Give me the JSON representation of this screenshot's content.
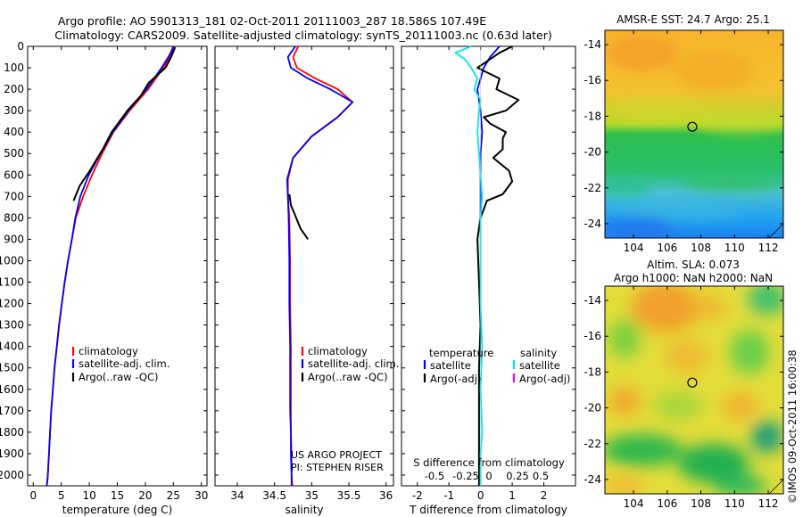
{
  "header": {
    "line1": "Argo profile: AO 5901313_181 02-Oct-2011 20111003_287 18.586S 107.49E",
    "line2": "Climatology: CARS2009. Satellite-adjusted climatology: synTS_20111003.nc (0.63d later)"
  },
  "colors": {
    "climatology": "#ff0000",
    "satellite": "#0000ff",
    "argo": "#000000",
    "salinity_satellite": "#00e5ee",
    "salinity_argo": "#ff00ff"
  },
  "chart_data": [
    {
      "type": "line",
      "panel": "temperature",
      "xlabel": "temperature (deg C)",
      "ylabel": "",
      "xlim": [
        -1,
        31
      ],
      "ylim": [
        2050,
        0
      ],
      "xticks": [
        0,
        5,
        10,
        15,
        20,
        25,
        30
      ],
      "yticks": [
        0,
        100,
        200,
        300,
        400,
        500,
        600,
        700,
        800,
        900,
        1000,
        1100,
        1200,
        1300,
        1400,
        1500,
        1600,
        1700,
        1800,
        1900,
        2000
      ],
      "legend": [
        "climatology",
        "satellite-adj. clim.",
        "Argo(..raw -QC)"
      ],
      "series": [
        {
          "name": "climatology",
          "color": "#ff0000",
          "x": [
            25.3,
            24.8,
            24.3,
            23.2,
            20.5,
            17.2,
            14.3,
            12.3,
            10.5,
            8.9,
            7.6,
            6.9,
            6.2,
            5.6,
            5.1,
            4.6,
            4.2,
            3.8,
            3.5,
            3.2,
            3.0,
            2.8,
            2.6,
            2.5,
            2.4,
            2.3
          ],
          "y": [
            0,
            25,
            50,
            100,
            200,
            300,
            400,
            500,
            600,
            700,
            800,
            900,
            1000,
            1100,
            1200,
            1300,
            1400,
            1500,
            1600,
            1700,
            1800,
            1900,
            2000,
            2030,
            2050,
            2050
          ]
        },
        {
          "name": "satellite-adj. clim.",
          "color": "#0000ff",
          "x": [
            25.0,
            24.6,
            24.1,
            22.9,
            20.2,
            17.0,
            14.2,
            12.0,
            9.9,
            8.4,
            7.5,
            6.9,
            6.2,
            5.6,
            5.1,
            4.6,
            4.2,
            3.8,
            3.5,
            3.2,
            3.0,
            2.8,
            2.6,
            2.5,
            2.4
          ],
          "y": [
            0,
            25,
            50,
            100,
            200,
            300,
            400,
            500,
            600,
            700,
            800,
            900,
            1000,
            1100,
            1200,
            1300,
            1400,
            1500,
            1600,
            1700,
            1800,
            1900,
            2000,
            2030,
            2050
          ]
        },
        {
          "name": "Argo(..raw -QC)",
          "color": "#000000",
          "x": [
            25.3,
            25.0,
            24.5,
            23.6,
            20.6,
            19.2,
            16.8,
            14.0,
            12.4,
            10.1,
            8.3,
            7.2
          ],
          "y": [
            5,
            25,
            55,
            100,
            170,
            230,
            300,
            400,
            480,
            580,
            650,
            720
          ]
        }
      ]
    },
    {
      "type": "line",
      "panel": "salinity",
      "xlabel": "salinity",
      "xlim": [
        33.7,
        36.1
      ],
      "ylim": [
        2050,
        0
      ],
      "xticks": [
        34,
        34.5,
        35,
        35.5,
        36
      ],
      "xtick_labels": [
        "34",
        "34.5",
        "35",
        "35.5",
        "36"
      ],
      "legend": [
        "climatology",
        "satellite-adj. clim.",
        "Argo(..raw -QC)"
      ],
      "annotations": [
        "US ARGO PROJECT",
        "PI: STEPHEN RISER"
      ],
      "series": [
        {
          "name": "climatology",
          "color": "#ff0000",
          "x": [
            34.82,
            34.75,
            34.8,
            35.05,
            35.35,
            35.55,
            35.35,
            35.0,
            34.75,
            34.68,
            34.68,
            34.7,
            34.71,
            34.71,
            34.72,
            34.72,
            34.72,
            34.72,
            34.73,
            34.73,
            34.74
          ],
          "y": [
            0,
            50,
            100,
            150,
            200,
            260,
            330,
            420,
            520,
            620,
            700,
            800,
            1000,
            1200,
            1400,
            1600,
            1700,
            1800,
            1900,
            2000,
            2050
          ]
        },
        {
          "name": "satellite-adj. clim.",
          "color": "#0000ff",
          "x": [
            34.78,
            34.68,
            34.72,
            34.95,
            35.25,
            35.55,
            35.35,
            35.0,
            34.75,
            34.67,
            34.68,
            34.69,
            34.7,
            34.7,
            34.71,
            34.71,
            34.71,
            34.72,
            34.72,
            34.73,
            34.73
          ],
          "y": [
            0,
            50,
            100,
            150,
            200,
            260,
            330,
            420,
            520,
            620,
            700,
            800,
            1000,
            1200,
            1400,
            1600,
            1700,
            1800,
            1900,
            2000,
            2050
          ]
        },
        {
          "name": "Argo(..raw -QC)",
          "color": "#000000",
          "x": [
            34.7,
            34.72,
            34.78,
            34.85,
            34.95
          ],
          "y": [
            690,
            740,
            790,
            850,
            900
          ]
        }
      ]
    },
    {
      "type": "line",
      "panel": "difference",
      "xlabel": "T difference from climatology",
      "xlim": [
        -2.5,
        3
      ],
      "ylim": [
        2050,
        0
      ],
      "xticks": [
        -2,
        -1,
        0,
        1,
        2
      ],
      "top_axis_label": "S difference from climatology",
      "top_ticks": [
        "-0.5",
        "-0.25",
        "0",
        "0.25",
        "0.5"
      ],
      "legend_temperature": [
        "temperature",
        "satellite",
        "Argo(-adj)"
      ],
      "legend_salinity": [
        "salinity",
        "satellite",
        "Argo(-adj)"
      ],
      "series": [
        {
          "name": "temperature satellite",
          "color": "#0000ff",
          "x": [
            0.6,
            0.3,
            0.1,
            -0.1,
            0.0,
            0.05,
            0.0,
            0.0,
            0.0,
            0.0
          ],
          "y": [
            0,
            50,
            100,
            200,
            300,
            400,
            500,
            600,
            700,
            800
          ]
        },
        {
          "name": "temperature Argo(-adj)",
          "color": "#000000",
          "x": [
            1.0,
            0.6,
            0.3,
            -0.1,
            0.6,
            0.5,
            1.2,
            0.8,
            0.1,
            0.3,
            0.8,
            0.7,
            0.7,
            0.4,
            0.9,
            1.0,
            0.7,
            0.2,
            0.1,
            0.0,
            -0.1,
            -0.05,
            0.0,
            -0.05,
            -0.05,
            -0.05,
            -0.05,
            -0.05
          ],
          "y": [
            0,
            30,
            60,
            100,
            150,
            200,
            250,
            300,
            330,
            360,
            400,
            430,
            480,
            520,
            580,
            630,
            690,
            720,
            760,
            800,
            900,
            1100,
            1300,
            1500,
            1700,
            1800,
            2000,
            2050
          ]
        },
        {
          "name": "salinity satellite",
          "color": "#00e5ee",
          "x": [
            -0.3,
            -0.8,
            -0.5,
            -0.3,
            -0.1,
            -0.2,
            0.0,
            -0.05,
            -0.1,
            -0.05,
            0.0,
            0.05,
            0.0,
            0.0,
            0.0,
            0.05,
            0.0,
            0.05,
            0.0,
            0.0,
            0.0
          ],
          "y": [
            0,
            30,
            60,
            100,
            150,
            200,
            250,
            300,
            400,
            500,
            600,
            700,
            800,
            1000,
            1200,
            1400,
            1600,
            1800,
            1900,
            2000,
            2050
          ]
        }
      ]
    },
    {
      "type": "heatmap",
      "panel": "sst",
      "title": "AMSR-E SST: 24.7  Argo: 25.1",
      "xticks": [
        104,
        106,
        108,
        110,
        112
      ],
      "yticks": [
        -14,
        -16,
        -18,
        -20,
        -22,
        -24
      ],
      "xlim": [
        102.3,
        112.9
      ],
      "ylim": [
        -24.8,
        -13.2
      ],
      "marker": {
        "lon": 107.49,
        "lat": -18.586
      }
    },
    {
      "type": "heatmap",
      "panel": "sla",
      "title_line1": "Altim. SLA: 0.073",
      "title_line2": "Argo h1000: NaN h2000: NaN",
      "xticks": [
        104,
        106,
        108,
        110,
        112
      ],
      "yticks": [
        -14,
        -16,
        -18,
        -20,
        -22,
        -24
      ],
      "xlim": [
        102.3,
        112.9
      ],
      "ylim": [
        -24.8,
        -13.2
      ],
      "marker": {
        "lon": 107.49,
        "lat": -18.586
      }
    }
  ],
  "footer": {
    "credit": "©IMOS 09-Oct-2011 16:00:38"
  }
}
